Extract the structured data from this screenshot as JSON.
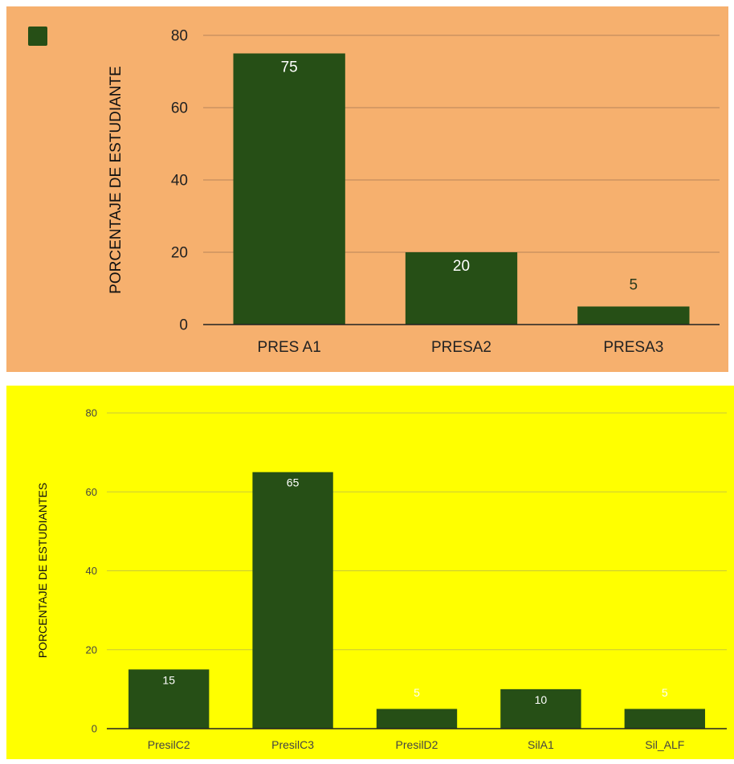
{
  "chart_data": [
    {
      "type": "bar",
      "title": "",
      "background": "#f6b06e",
      "bar_color": "#264f16",
      "gridline_color": "#b8835a",
      "text_color": "#222222",
      "label_outside_color": "#2b3a1c",
      "categories": [
        "PRES A1",
        "PRESA2",
        "PRESA3"
      ],
      "values": [
        75,
        20,
        5
      ],
      "xlabel": "",
      "ylabel": "PORCENTAJE DE ESTUDIANTE",
      "ylim": [
        0,
        80
      ],
      "yticks": [
        0,
        20,
        40,
        60,
        80
      ],
      "grid": true,
      "legend": {
        "placement": "top-left",
        "entries": [
          ""
        ]
      }
    },
    {
      "type": "bar",
      "title": "",
      "background": "#ffff00",
      "bar_color": "#264f16",
      "gridline_color": "#c9c93a",
      "text_color": "#444444",
      "categories": [
        "PresilC2",
        "PresilC3",
        "PresilD2",
        "SilA1",
        "Sil_ALF"
      ],
      "values": [
        15,
        65,
        5,
        10,
        5
      ],
      "xlabel": "",
      "ylabel": "PORCENTAJE DE ESTUDIANTES",
      "ylim": [
        0,
        80
      ],
      "yticks": [
        0,
        20,
        40,
        60,
        80
      ],
      "grid": true
    }
  ]
}
